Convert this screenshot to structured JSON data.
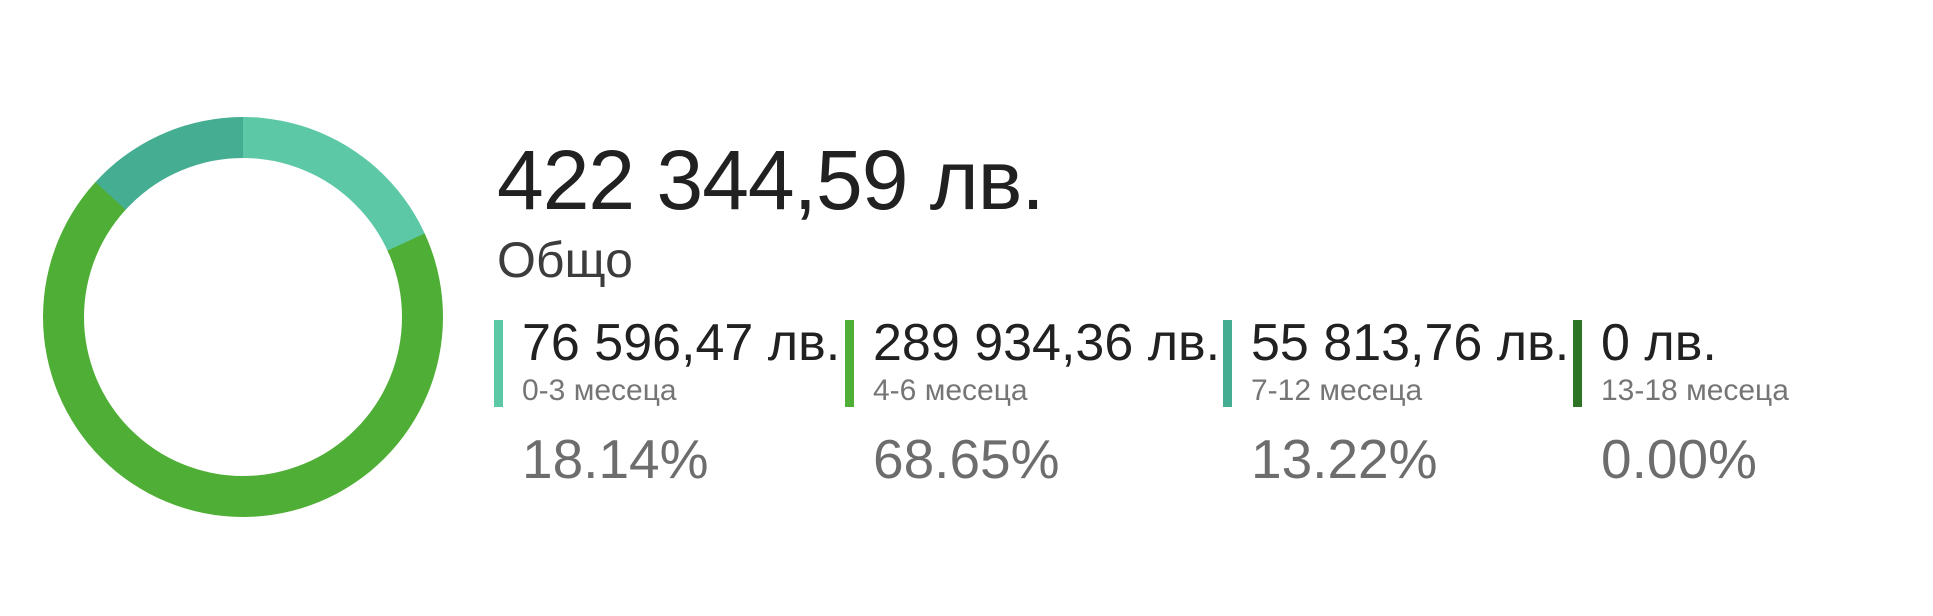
{
  "summary": {
    "total_value": "422 344,59 лв.",
    "total_label": "Общо"
  },
  "chart_data": {
    "type": "pie",
    "variant": "donut",
    "title": "Общо",
    "total_label": "422 344,59 лв.",
    "total_numeric": 422344.59,
    "currency_unit": "лв.",
    "start_angle_deg": 0,
    "direction": "clockwise",
    "legend_position": "right",
    "segments": [
      {
        "label": "0-3 месеца",
        "value_label": "76 596,47 лв.",
        "value": 76596.47,
        "percent": 18.14,
        "percent_label": "18.14%",
        "color": "#5cc8a6"
      },
      {
        "label": "4-6 месеца",
        "value_label": "289 934,36 лв.",
        "value": 289934.36,
        "percent": 68.65,
        "percent_label": "68.65%",
        "color": "#4fae35"
      },
      {
        "label": "7-12 месеца",
        "value_label": "55 813,76 лв.",
        "value": 55813.76,
        "percent": 13.22,
        "percent_label": "13.22%",
        "color": "#44ad92"
      },
      {
        "label": "13-18 месеца",
        "value_label": "0 лв.",
        "value": 0,
        "percent": 0.0,
        "percent_label": "0.00%",
        "color": "#2e7425"
      }
    ]
  }
}
